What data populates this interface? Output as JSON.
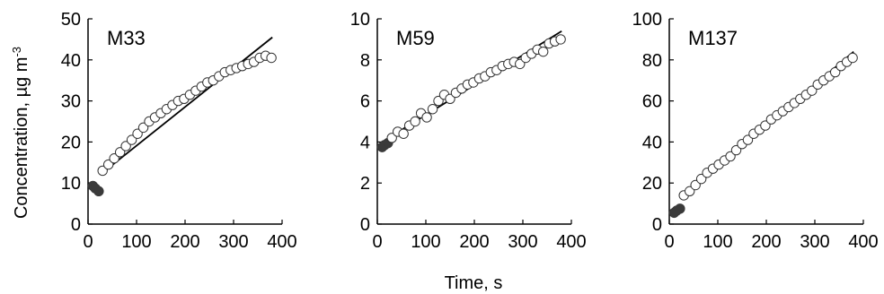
{
  "figure": {
    "ylabel_main": "Concentration, µg m",
    "ylabel_sup": "-3",
    "xlabel": "Time, s"
  },
  "chart_data": [
    {
      "type": "scatter",
      "title": "M33",
      "xlabel": "Time, s",
      "ylabel": "Concentration, µg m-3",
      "xlim": [
        0,
        400
      ],
      "ylim": [
        0,
        50
      ],
      "xticks": [
        "0",
        "100",
        "200",
        "300",
        "400"
      ],
      "yticks": [
        "0",
        "10",
        "20",
        "30",
        "40",
        "50"
      ],
      "series": [
        {
          "filled": true,
          "x": [
            10,
            15,
            22
          ],
          "y": [
            9.3,
            8.7,
            8.0
          ]
        },
        {
          "filled": false,
          "x": [
            30,
            42,
            54,
            66,
            78,
            90,
            102,
            114,
            126,
            138,
            150,
            162,
            174,
            186,
            198,
            210,
            222,
            234,
            246,
            258,
            270,
            282,
            294,
            306,
            318,
            330,
            342,
            354,
            366,
            378
          ],
          "y": [
            13.0,
            14.5,
            16.0,
            17.5,
            19.0,
            20.5,
            22.0,
            23.5,
            25.0,
            26.0,
            27.0,
            28.0,
            29.0,
            30.0,
            30.5,
            31.5,
            32.5,
            33.5,
            34.5,
            35.0,
            36.0,
            37.0,
            37.5,
            38.0,
            38.5,
            39.0,
            39.5,
            40.5,
            41.0,
            40.5
          ]
        }
      ],
      "fit_line": {
        "x": [
          30,
          380
        ],
        "y": [
          12.5,
          45.5
        ]
      }
    },
    {
      "type": "scatter",
      "title": "M59",
      "xlabel": "Time, s",
      "ylabel": "Concentration, µg m-3",
      "xlim": [
        0,
        400
      ],
      "ylim": [
        0,
        10
      ],
      "xticks": [
        "0",
        "100",
        "200",
        "300",
        "400"
      ],
      "yticks": [
        "0",
        "2",
        "4",
        "6",
        "8",
        "10"
      ],
      "series": [
        {
          "filled": true,
          "x": [
            10,
            15,
            22
          ],
          "y": [
            3.75,
            3.85,
            3.95
          ]
        },
        {
          "filled": false,
          "x": [
            30,
            42,
            54,
            66,
            78,
            90,
            102,
            114,
            126,
            138,
            150,
            162,
            174,
            186,
            198,
            210,
            222,
            234,
            246,
            258,
            270,
            282,
            294,
            306,
            318,
            330,
            342,
            354,
            366,
            378
          ],
          "y": [
            4.2,
            4.5,
            4.4,
            4.8,
            5.0,
            5.4,
            5.2,
            5.6,
            6.0,
            6.3,
            6.1,
            6.4,
            6.6,
            6.8,
            6.9,
            7.1,
            7.2,
            7.4,
            7.5,
            7.7,
            7.8,
            7.9,
            7.8,
            8.1,
            8.3,
            8.5,
            8.4,
            8.8,
            8.9,
            9.0
          ]
        }
      ],
      "fit_line": {
        "x": [
          30,
          380
        ],
        "y": [
          4.3,
          9.4
        ]
      }
    },
    {
      "type": "scatter",
      "title": "M137",
      "xlabel": "Time, s",
      "ylabel": "Concentration, µg m-3",
      "xlim": [
        0,
        400
      ],
      "ylim": [
        0,
        100
      ],
      "xticks": [
        "0",
        "100",
        "200",
        "300",
        "400"
      ],
      "yticks": [
        "0",
        "20",
        "40",
        "60",
        "80",
        "100"
      ],
      "series": [
        {
          "filled": true,
          "x": [
            10,
            15,
            22
          ],
          "y": [
            5.5,
            6.5,
            7.5
          ]
        },
        {
          "filled": false,
          "x": [
            30,
            42,
            54,
            66,
            78,
            90,
            102,
            114,
            126,
            138,
            150,
            162,
            174,
            186,
            198,
            210,
            222,
            234,
            246,
            258,
            270,
            282,
            294,
            306,
            318,
            330,
            342,
            354,
            366,
            378
          ],
          "y": [
            14,
            16,
            19,
            22,
            25,
            27,
            29,
            31,
            33,
            36,
            39,
            41,
            44,
            46,
            48,
            51,
            53,
            55,
            57,
            59,
            61,
            63,
            65,
            68,
            70,
            72,
            74,
            77,
            79,
            81
          ]
        }
      ],
      "fit_line": {
        "x": [
          30,
          380
        ],
        "y": [
          13.5,
          84
        ]
      }
    }
  ]
}
